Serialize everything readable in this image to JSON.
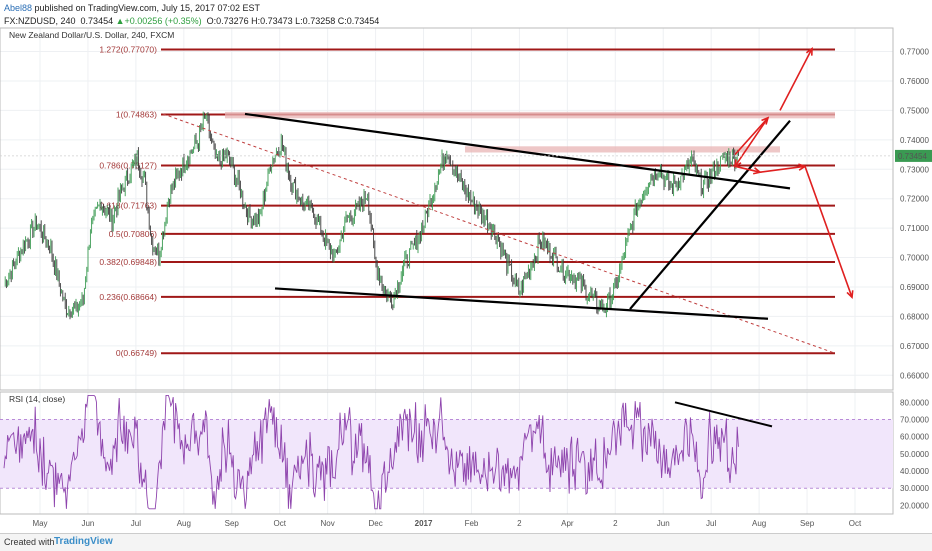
{
  "header": {
    "author": "Abel88",
    "published": " published on TradingView.com, July 15, 2017 07:02 EST",
    "symbol_line": "FX:NZDUSD, 240",
    "price": "0.73454",
    "change": "+0.00256 (+0.35%)",
    "ohlc": "O:0.73276 H:0.73473 L:0.73258 C:0.73454"
  },
  "footer": {
    "created_with": "Created with",
    "brand": "TradingView"
  },
  "chart_data": [
    {
      "type": "line",
      "title": "New Zealand Dollar/U.S. Dollar, 240, FXCM",
      "ylim": [
        0.655,
        0.778
      ],
      "y_ticks": [
        "0.77000",
        "0.76000",
        "0.75000",
        "0.74000",
        "0.73000",
        "0.72000",
        "0.71000",
        "0.70000",
        "0.69000",
        "0.68000",
        "0.67000",
        "0.66000"
      ],
      "last_price": "0.73454",
      "x_ticks": [
        "May",
        "Jun",
        "Jul",
        "Aug",
        "Sep",
        "Oct",
        "Nov",
        "Dec",
        "2017",
        "Feb",
        "2",
        "Apr",
        "2",
        "Jun",
        "Jul",
        "Aug",
        "Sep",
        "Oct"
      ],
      "fib_levels": [
        {
          "label": "1.272(0.77070)",
          "value": 0.7707
        },
        {
          "label": "1(0.74863)",
          "value": 0.74863
        },
        {
          "label": "0.786(0.73127)",
          "value": 0.73127
        },
        {
          "label": "0.618(0.71763)",
          "value": 0.71763
        },
        {
          "label": "0.5(0.70806)",
          "value": 0.70806
        },
        {
          "label": "0.382(0.69848)",
          "value": 0.69848
        },
        {
          "label": "0.236(0.68664)",
          "value": 0.68664
        },
        {
          "label": "0(0.66749)",
          "value": 0.66749
        }
      ],
      "price_path": [
        [
          0,
          0.691
        ],
        [
          5,
          0.703
        ],
        [
          9,
          0.712
        ],
        [
          13,
          0.703
        ],
        [
          17,
          0.683
        ],
        [
          20,
          0.682
        ],
        [
          22,
          0.686
        ],
        [
          24,
          0.71
        ],
        [
          27,
          0.719
        ],
        [
          30,
          0.713
        ],
        [
          33,
          0.724
        ],
        [
          37,
          0.734
        ],
        [
          39,
          0.726
        ],
        [
          41,
          0.706
        ],
        [
          43,
          0.701
        ],
        [
          46,
          0.722
        ],
        [
          50,
          0.732
        ],
        [
          54,
          0.74
        ],
        [
          56,
          0.748
        ],
        [
          59,
          0.732
        ],
        [
          62,
          0.735
        ],
        [
          65,
          0.725
        ],
        [
          68,
          0.714
        ],
        [
          71,
          0.713
        ],
        [
          74,
          0.732
        ],
        [
          77,
          0.739
        ],
        [
          80,
          0.725
        ],
        [
          83,
          0.718
        ],
        [
          86,
          0.716
        ],
        [
          89,
          0.706
        ],
        [
          92,
          0.7
        ],
        [
          95,
          0.713
        ],
        [
          98,
          0.716
        ],
        [
          101,
          0.722
        ],
        [
          103,
          0.699
        ],
        [
          106,
          0.688
        ],
        [
          108,
          0.686
        ],
        [
          111,
          0.697
        ],
        [
          114,
          0.704
        ],
        [
          117,
          0.713
        ],
        [
          120,
          0.726
        ],
        [
          123,
          0.737
        ],
        [
          126,
          0.727
        ],
        [
          130,
          0.719
        ],
        [
          134,
          0.713
        ],
        [
          137,
          0.707
        ],
        [
          140,
          0.697
        ],
        [
          143,
          0.688
        ],
        [
          146,
          0.696
        ],
        [
          149,
          0.706
        ],
        [
          152,
          0.702
        ],
        [
          155,
          0.696
        ],
        [
          158,
          0.694
        ],
        [
          161,
          0.69
        ],
        [
          164,
          0.685
        ],
        [
          167,
          0.683
        ],
        [
          170,
          0.69
        ],
        [
          173,
          0.705
        ],
        [
          176,
          0.718
        ],
        [
          179,
          0.726
        ],
        [
          182,
          0.73
        ],
        [
          185,
          0.724
        ],
        [
          188,
          0.727
        ],
        [
          191,
          0.733
        ],
        [
          194,
          0.724
        ],
        [
          197,
          0.729
        ],
        [
          200,
          0.734
        ],
        [
          203,
          0.734
        ],
        [
          204,
          0.7345
        ]
      ],
      "rsi": {
        "title": "RSI (14, close)",
        "ylim": [
          15,
          86
        ],
        "y_ticks": [
          "80.0000",
          "70.0000",
          "60.0000",
          "50.0000",
          "40.0000",
          "30.0000",
          "20.0000"
        ],
        "band": [
          30,
          70
        ]
      }
    }
  ]
}
